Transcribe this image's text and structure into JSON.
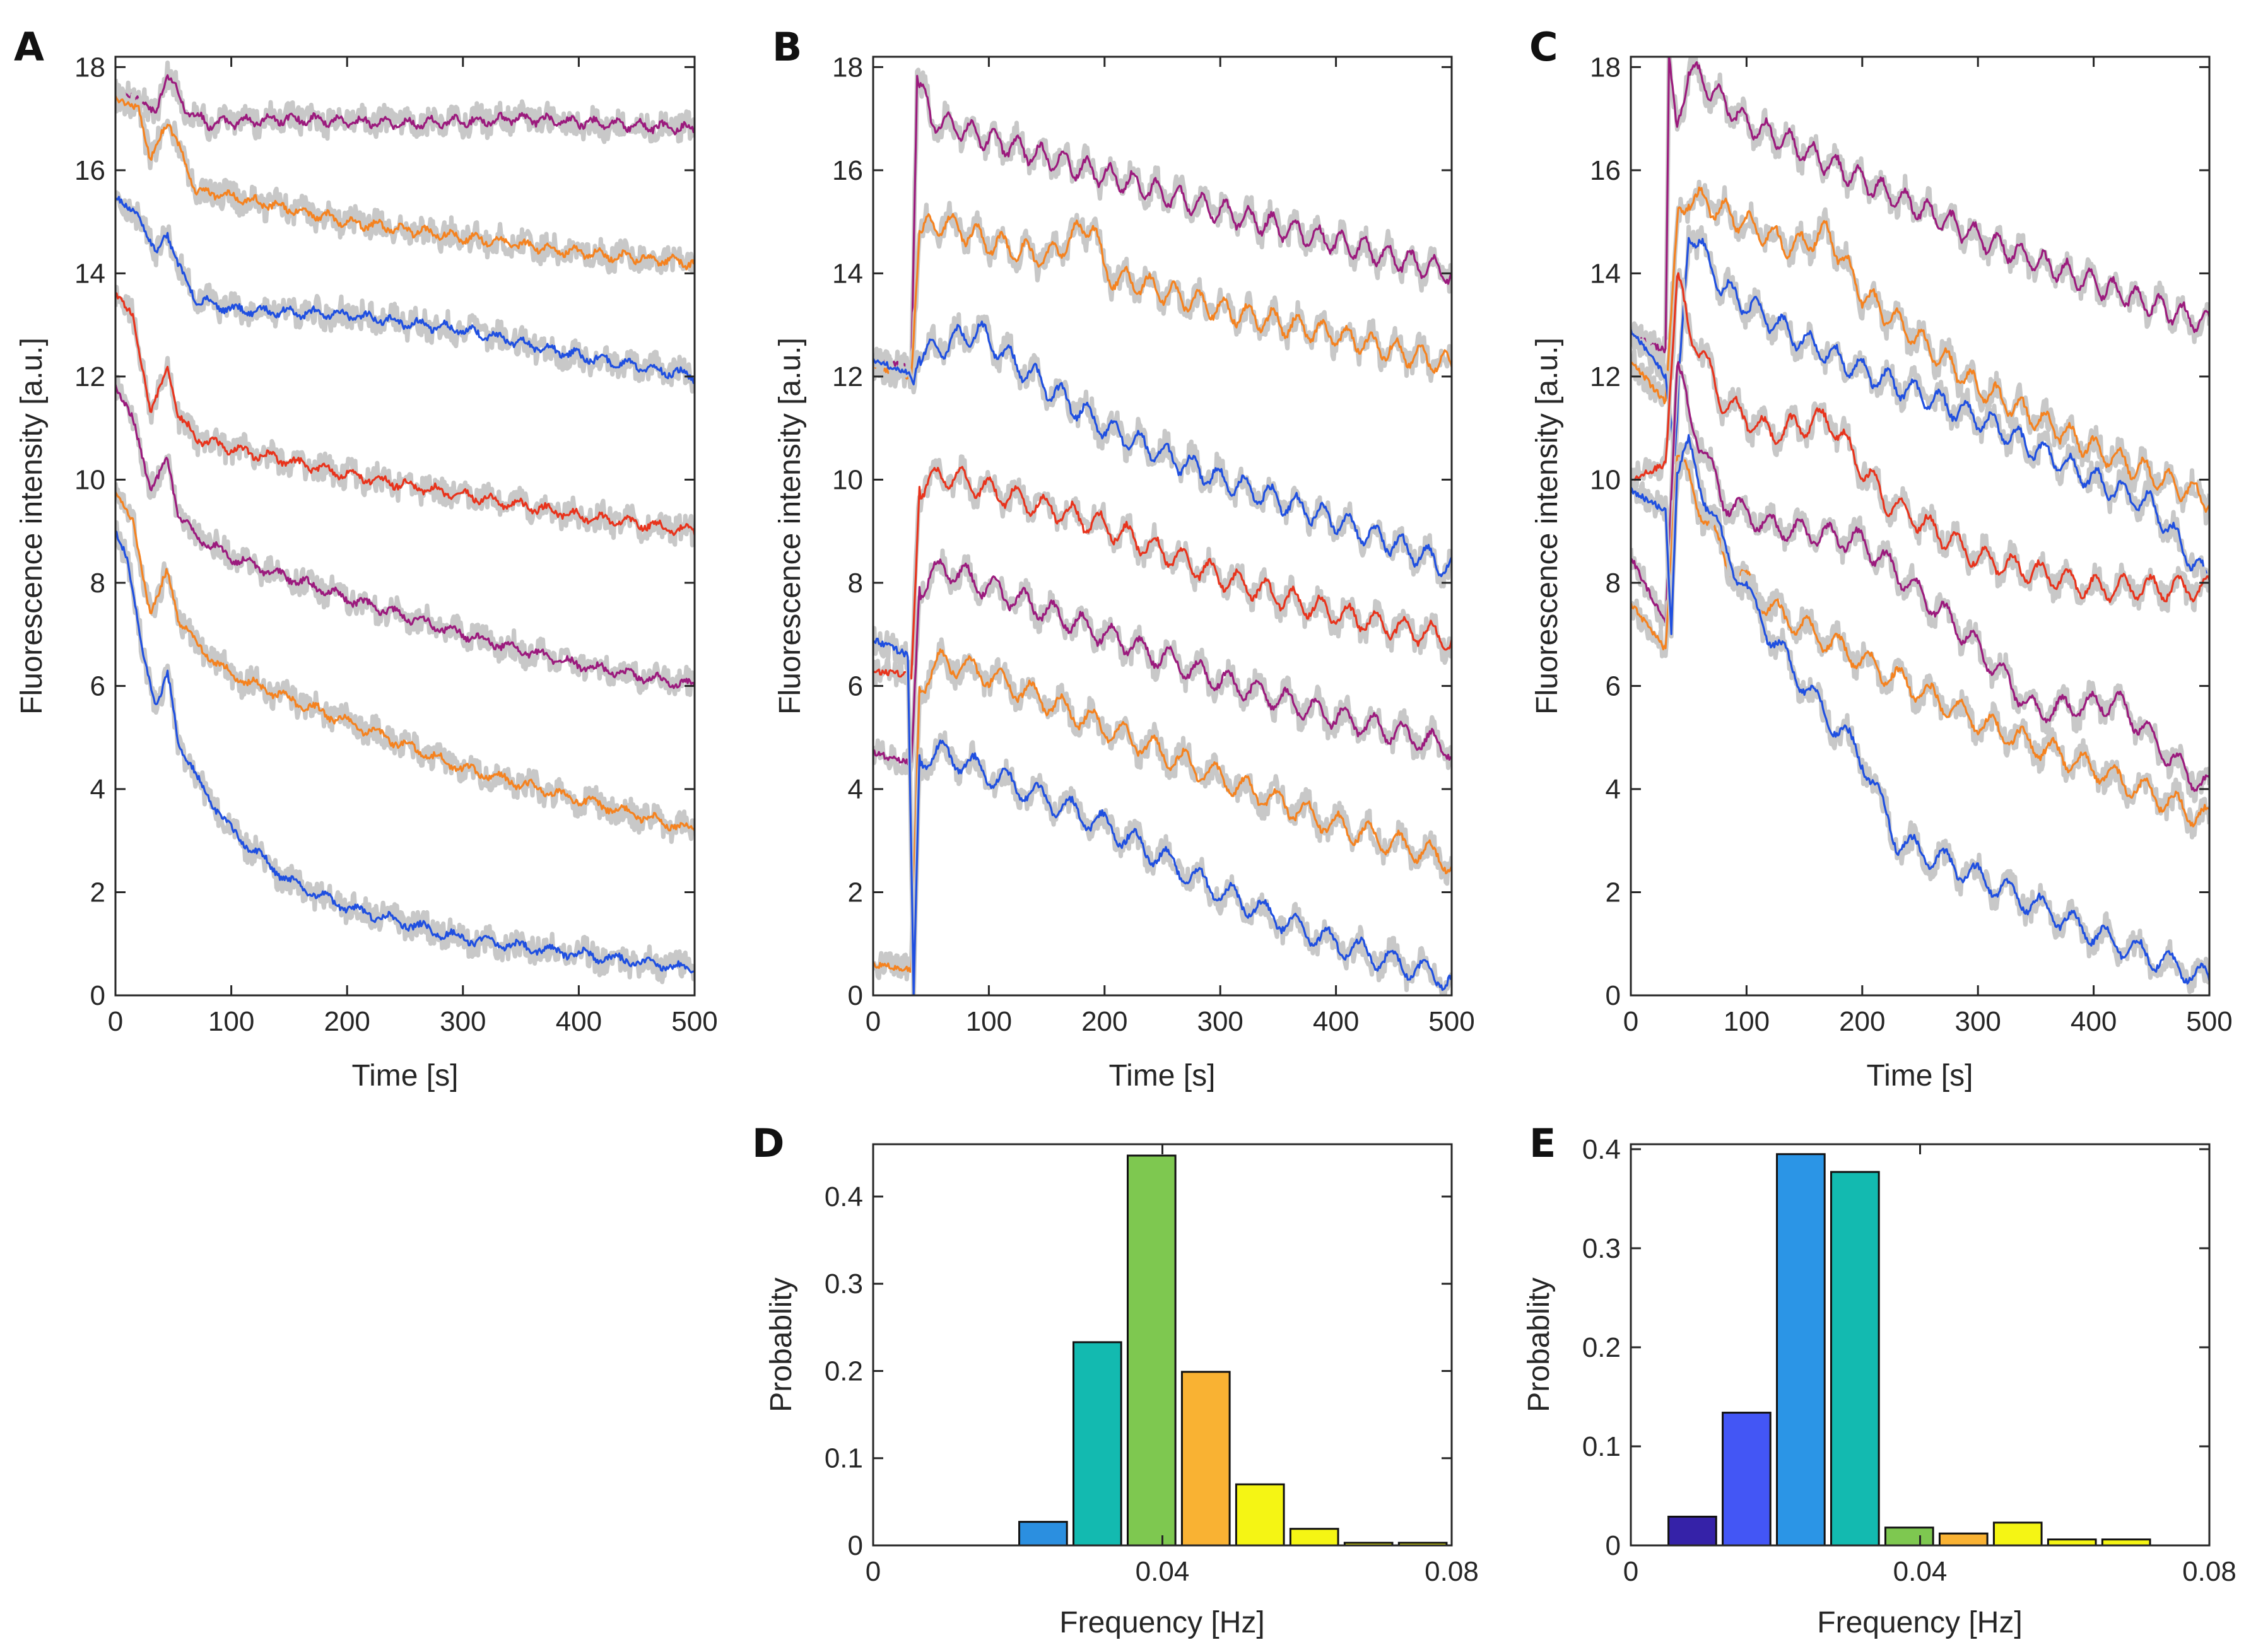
{
  "colors": {
    "purple": "#9b1a7d",
    "orange": "#f5821f",
    "blue": "#1f4fe0",
    "red": "#e8331c",
    "raw": "#c8c8c8",
    "hist_D": [
      "#2b8fe0",
      "#13bab0",
      "#7ec850",
      "#f9b233",
      "#f5f514",
      "#f5f514",
      "#f5f514",
      "#f5f514"
    ],
    "hist_E": [
      "#3522a8",
      "#4356f5",
      "#2b95e6",
      "#13bab0",
      "#7ec850",
      "#f9b233",
      "#f5f514",
      "#f5f514",
      "#f5f514"
    ]
  },
  "chart_data": [
    {
      "panel": "A",
      "type": "line",
      "xlabel": "Time [s]",
      "ylabel": "Fluorescence intensity [a.u.]",
      "xlim": [
        0,
        500
      ],
      "ylim": [
        0,
        18.2
      ],
      "xticks": [
        "0",
        "100",
        "200",
        "300",
        "400",
        "500"
      ],
      "yticks": [
        "0",
        "2",
        "4",
        "6",
        "8",
        "10",
        "12",
        "14",
        "16",
        "18"
      ],
      "series": [
        {
          "name": "trace 1",
          "color": "purple",
          "x": [
            0,
            20,
            35,
            45,
            60,
            80,
            150,
            250,
            350,
            420,
            500
          ],
          "y": [
            17.5,
            17.4,
            17.1,
            17.9,
            17.2,
            16.9,
            17.0,
            16.9,
            17.0,
            16.9,
            16.8
          ]
        },
        {
          "name": "trace 2",
          "color": "orange",
          "x": [
            0,
            20,
            30,
            45,
            55,
            70,
            100,
            200,
            300,
            400,
            500
          ],
          "y": [
            17.4,
            17.2,
            16.2,
            17.0,
            16.4,
            15.6,
            15.5,
            15.0,
            14.7,
            14.4,
            14.2
          ]
        },
        {
          "name": "trace 3",
          "color": "blue",
          "x": [
            0,
            20,
            35,
            45,
            55,
            70,
            100,
            200,
            300,
            400,
            500
          ],
          "y": [
            15.5,
            15.1,
            14.4,
            14.8,
            14.1,
            13.5,
            13.3,
            13.2,
            12.9,
            12.4,
            12.0
          ]
        },
        {
          "name": "trace 4",
          "color": "red",
          "x": [
            0,
            15,
            30,
            45,
            55,
            70,
            100,
            200,
            300,
            400,
            500
          ],
          "y": [
            13.6,
            13.2,
            11.3,
            12.2,
            11.2,
            10.8,
            10.6,
            10.1,
            9.7,
            9.3,
            9.0
          ]
        },
        {
          "name": "trace 5",
          "color": "purple",
          "x": [
            0,
            15,
            30,
            45,
            55,
            70,
            100,
            200,
            300,
            400,
            500
          ],
          "y": [
            11.8,
            11.2,
            9.8,
            10.4,
            9.3,
            8.9,
            8.5,
            7.7,
            7.0,
            6.4,
            6.0
          ]
        },
        {
          "name": "trace 6",
          "color": "orange",
          "x": [
            0,
            15,
            30,
            45,
            55,
            70,
            100,
            200,
            300,
            400,
            500
          ],
          "y": [
            9.8,
            9.2,
            7.4,
            8.2,
            7.3,
            6.8,
            6.2,
            5.3,
            4.4,
            3.8,
            3.2
          ]
        },
        {
          "name": "trace 7",
          "color": "blue",
          "x": [
            0,
            10,
            25,
            35,
            45,
            55,
            70,
            100,
            150,
            200,
            250,
            300,
            400,
            500
          ],
          "y": [
            9.0,
            8.5,
            6.5,
            5.6,
            6.2,
            4.9,
            4.2,
            3.2,
            2.2,
            1.7,
            1.4,
            1.1,
            0.8,
            0.5
          ]
        }
      ]
    },
    {
      "panel": "B",
      "type": "line",
      "xlabel": "Time [s]",
      "ylabel": "Fluorescence intensity [a.u.]",
      "xlim": [
        0,
        500
      ],
      "ylim": [
        0,
        18.2
      ],
      "xticks": [
        "0",
        "100",
        "200",
        "300",
        "400",
        "500"
      ],
      "yticks": [
        "0",
        "2",
        "4",
        "6",
        "8",
        "10",
        "12",
        "14",
        "16",
        "18"
      ],
      "series": [
        {
          "name": "trace 1",
          "color": "purple",
          "x": [
            0,
            30,
            33,
            38,
            50,
            100,
            200,
            300,
            400,
            500
          ],
          "y": [
            12.3,
            12.2,
            12.1,
            17.8,
            17.0,
            16.6,
            15.9,
            15.2,
            14.6,
            14.0
          ]
        },
        {
          "name": "trace 2",
          "color": "orange",
          "x": [
            0,
            30,
            33,
            40,
            60,
            100,
            150,
            190,
            200,
            300,
            400,
            500
          ],
          "y": [
            12.2,
            12.0,
            12.0,
            14.8,
            15.0,
            14.6,
            14.3,
            15.0,
            14.0,
            13.3,
            12.8,
            12.2
          ]
        },
        {
          "name": "trace 3",
          "color": "blue",
          "x": [
            0,
            30,
            35,
            40,
            60,
            90,
            120,
            200,
            300,
            400,
            500
          ],
          "y": [
            12.3,
            12.1,
            11.9,
            12.4,
            12.6,
            12.9,
            12.3,
            11.0,
            10.0,
            9.2,
            8.3
          ]
        },
        {
          "name": "trace 4",
          "color": "red",
          "x": [
            0,
            33,
            40,
            60,
            100,
            200,
            300,
            400,
            500
          ],
          "y": [
            6.3,
            6.2,
            9.8,
            10.1,
            9.8,
            9.1,
            8.1,
            7.4,
            6.9
          ]
        },
        {
          "name": "trace 5",
          "color": "purple",
          "x": [
            0,
            33,
            40,
            60,
            100,
            200,
            300,
            400,
            500
          ],
          "y": [
            4.7,
            4.5,
            7.9,
            8.3,
            7.9,
            7.0,
            6.1,
            5.4,
            4.8
          ]
        },
        {
          "name": "trace 6",
          "color": "orange",
          "x": [
            0,
            33,
            40,
            60,
            100,
            200,
            300,
            400,
            500
          ],
          "y": [
            0.6,
            0.5,
            6.0,
            6.5,
            6.2,
            5.2,
            4.2,
            3.3,
            2.6
          ]
        },
        {
          "name": "trace 7",
          "color": "blue",
          "x": [
            0,
            30,
            35,
            40,
            60,
            100,
            200,
            300,
            400,
            500
          ],
          "y": [
            6.9,
            6.6,
            0.0,
            4.6,
            4.7,
            4.3,
            3.3,
            2.0,
            1.0,
            0.3
          ]
        }
      ]
    },
    {
      "panel": "C",
      "type": "line",
      "xlabel": "Time [s]",
      "ylabel": "Fluorescence intensity [a.u.]",
      "xlim": [
        0,
        500
      ],
      "ylim": [
        0,
        18.2
      ],
      "xticks": [
        "0",
        "100",
        "200",
        "300",
        "400",
        "500"
      ],
      "yticks": [
        "0",
        "2",
        "4",
        "6",
        "8",
        "10",
        "12",
        "14",
        "16",
        "18"
      ],
      "series": [
        {
          "name": "trace 1",
          "color": "purple",
          "x": [
            0,
            30,
            33,
            40,
            50,
            100,
            140,
            200,
            300,
            400,
            500
          ],
          "y": [
            12.8,
            12.5,
            18.2,
            16.8,
            18.0,
            16.9,
            16.5,
            15.8,
            14.7,
            13.8,
            13.0
          ]
        },
        {
          "name": "trace 2",
          "color": "orange",
          "x": [
            0,
            30,
            40,
            50,
            80,
            140,
            170,
            200,
            300,
            400,
            500
          ],
          "y": [
            12.3,
            11.5,
            15.0,
            15.5,
            15.2,
            14.5,
            14.8,
            13.6,
            11.8,
            10.6,
            9.6
          ]
        },
        {
          "name": "trace 3",
          "color": "blue",
          "x": [
            0,
            30,
            38,
            50,
            80,
            140,
            200,
            300,
            400,
            450,
            500
          ],
          "y": [
            12.9,
            12.0,
            10.5,
            14.9,
            13.7,
            12.8,
            12.1,
            11.2,
            10.0,
            9.5,
            8.0
          ]
        },
        {
          "name": "trace 4",
          "color": "red",
          "x": [
            0,
            30,
            40,
            50,
            80,
            120,
            170,
            220,
            300,
            400,
            500
          ],
          "y": [
            10.0,
            10.3,
            13.9,
            13.0,
            11.5,
            10.9,
            11.2,
            9.6,
            8.5,
            7.9,
            7.9
          ]
        },
        {
          "name": "trace 5",
          "color": "purple",
          "x": [
            0,
            30,
            40,
            50,
            80,
            120,
            200,
            280,
            350,
            420,
            470,
            500
          ],
          "y": [
            8.5,
            7.2,
            12.2,
            11.3,
            9.6,
            9.1,
            8.8,
            7.2,
            5.5,
            5.7,
            4.5,
            4.0
          ]
        },
        {
          "name": "trace 6",
          "color": "orange",
          "x": [
            0,
            30,
            40,
            50,
            80,
            120,
            200,
            300,
            400,
            500
          ],
          "y": [
            7.6,
            6.7,
            10.5,
            10.0,
            8.5,
            7.5,
            6.5,
            5.3,
            4.4,
            3.4
          ]
        },
        {
          "name": "trace 7",
          "color": "blue",
          "x": [
            0,
            30,
            35,
            40,
            50,
            80,
            120,
            160,
            200,
            230,
            300,
            400,
            500
          ],
          "y": [
            9.8,
            9.4,
            7.0,
            10.1,
            10.6,
            8.7,
            7.0,
            5.7,
            4.6,
            3.0,
            2.3,
            1.2,
            0.3
          ]
        }
      ]
    },
    {
      "panel": "D",
      "type": "bar",
      "xlabel": "Frequency [Hz]",
      "ylabel": "Probablity",
      "xlim": [
        0,
        0.08
      ],
      "ylim": [
        0,
        0.46
      ],
      "xticks": [
        "0",
        "0.04",
        "0.08"
      ],
      "yticks": [
        "0",
        "0.1",
        "0.2",
        "0.3",
        "0.4"
      ],
      "bin_width": 0.0075,
      "centers": [
        0.0235,
        0.031,
        0.0385,
        0.046,
        0.0535,
        0.061,
        0.0685,
        0.076
      ],
      "values": [
        0.027,
        0.233,
        0.447,
        0.199,
        0.07,
        0.019,
        0.003,
        0.003
      ]
    },
    {
      "panel": "E",
      "type": "bar",
      "xlabel": "Frequency [Hz]",
      "ylabel": "Probablity",
      "xlim": [
        0,
        0.08
      ],
      "ylim": [
        0,
        0.405
      ],
      "xticks": [
        "0",
        "0.04",
        "0.08"
      ],
      "yticks": [
        "0",
        "0.1",
        "0.2",
        "0.3",
        "0.4"
      ],
      "bin_width": 0.0075,
      "centers": [
        0.0085,
        0.016,
        0.0235,
        0.031,
        0.0385,
        0.046,
        0.0535,
        0.061,
        0.0685
      ],
      "values": [
        0.029,
        0.134,
        0.395,
        0.377,
        0.018,
        0.012,
        0.023,
        0.006,
        0.006
      ]
    }
  ]
}
